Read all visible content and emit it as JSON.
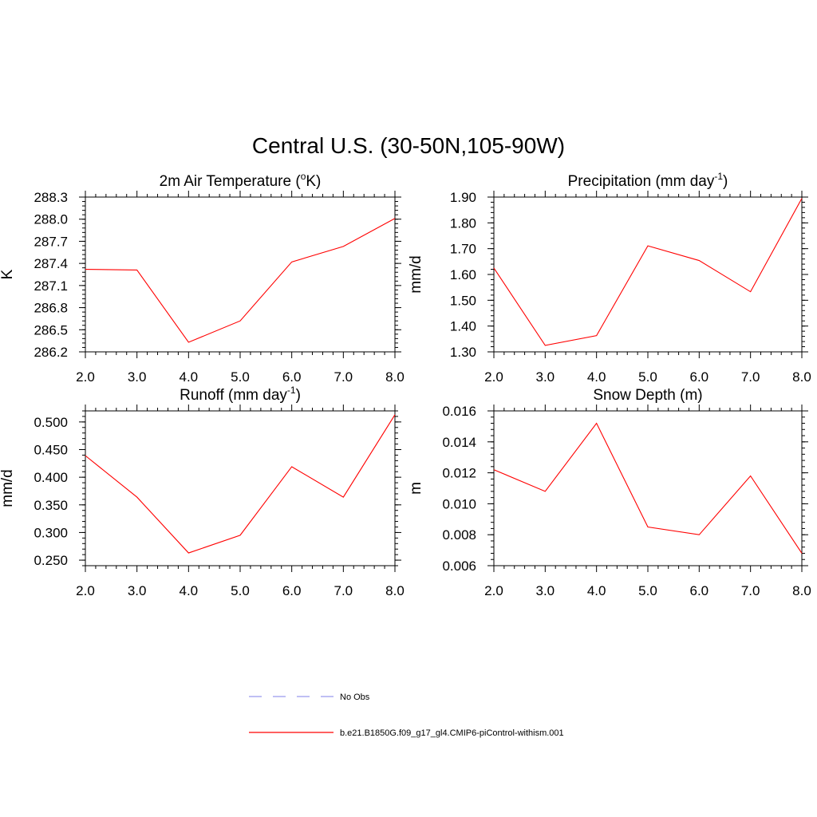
{
  "figure_title": "Central U.S. (30-50N,105-90W)",
  "legend": {
    "entries": [
      {
        "label": "No Obs",
        "color": "#9999ee",
        "dashed": true
      },
      {
        "label": "b.e21.B1850G.f09_g17_gl4.CMIP6-piControl-withism.001",
        "color": "#ff0000",
        "dashed": false
      }
    ]
  },
  "chart_data": [
    {
      "type": "line",
      "title": "2m Air Temperature (°K)",
      "title_parts": {
        "before": "2m Air Temperature (",
        "sup": "o",
        "after": "K)"
      },
      "xlabel": "",
      "ylabel": "K",
      "x": [
        2.0,
        3.0,
        4.0,
        5.0,
        6.0,
        7.0,
        8.0
      ],
      "xticks": [
        "2.0",
        "3.0",
        "4.0",
        "5.0",
        "6.0",
        "7.0",
        "8.0"
      ],
      "xlim": [
        2.0,
        8.0
      ],
      "ylim": [
        286.2,
        288.3
      ],
      "yticks": [
        "286.2",
        "286.5",
        "286.8",
        "287.1",
        "287.4",
        "287.7",
        "288.0",
        "288.3"
      ],
      "series": [
        {
          "values": [
            287.32,
            287.31,
            286.33,
            286.62,
            287.42,
            287.63,
            288.01
          ],
          "color": "#ff0000"
        }
      ]
    },
    {
      "type": "line",
      "title": "Precipitation (mm day-1)",
      "title_parts": {
        "before": "Precipitation (mm day",
        "sup": "-1",
        "after": ")"
      },
      "xlabel": "",
      "ylabel": "mm/d",
      "x": [
        2.0,
        3.0,
        4.0,
        5.0,
        6.0,
        7.0,
        8.0
      ],
      "xticks": [
        "2.0",
        "3.0",
        "4.0",
        "5.0",
        "6.0",
        "7.0",
        "8.0"
      ],
      "xlim": [
        2.0,
        8.0
      ],
      "ylim": [
        1.3,
        1.9
      ],
      "yticks": [
        "1.30",
        "1.40",
        "1.50",
        "1.60",
        "1.70",
        "1.80",
        "1.90"
      ],
      "series": [
        {
          "values": [
            1.625,
            1.325,
            1.363,
            1.711,
            1.654,
            1.533,
            1.895
          ],
          "color": "#ff0000"
        }
      ]
    },
    {
      "type": "line",
      "title": "Runoff (mm day-1)",
      "title_parts": {
        "before": "Runoff (mm day",
        "sup": "-1",
        "after": ")"
      },
      "xlabel": "",
      "ylabel": "mm/d",
      "x": [
        2.0,
        3.0,
        4.0,
        5.0,
        6.0,
        7.0,
        8.0
      ],
      "xticks": [
        "2.0",
        "3.0",
        "4.0",
        "5.0",
        "6.0",
        "7.0",
        "8.0"
      ],
      "xlim": [
        2.0,
        8.0
      ],
      "ylim": [
        0.24,
        0.52
      ],
      "yticks": [
        "0.250",
        "0.300",
        "0.350",
        "0.400",
        "0.450",
        "0.500"
      ],
      "series": [
        {
          "values": [
            0.439,
            0.364,
            0.263,
            0.295,
            0.419,
            0.364,
            0.513
          ],
          "color": "#ff0000"
        }
      ]
    },
    {
      "type": "line",
      "title": "Snow Depth (m)",
      "title_parts": {
        "before": "Snow Depth (m)",
        "sup": "",
        "after": ""
      },
      "xlabel": "",
      "ylabel": "m",
      "x": [
        2.0,
        3.0,
        4.0,
        5.0,
        6.0,
        7.0,
        8.0
      ],
      "xticks": [
        "2.0",
        "3.0",
        "4.0",
        "5.0",
        "6.0",
        "7.0",
        "8.0"
      ],
      "xlim": [
        2.0,
        8.0
      ],
      "ylim": [
        0.006,
        0.016
      ],
      "yticks": [
        "0.006",
        "0.008",
        "0.010",
        "0.012",
        "0.014",
        "0.016"
      ],
      "series": [
        {
          "values": [
            0.0122,
            0.0108,
            0.0152,
            0.0085,
            0.008,
            0.0118,
            0.0068
          ],
          "color": "#ff0000"
        }
      ]
    }
  ]
}
